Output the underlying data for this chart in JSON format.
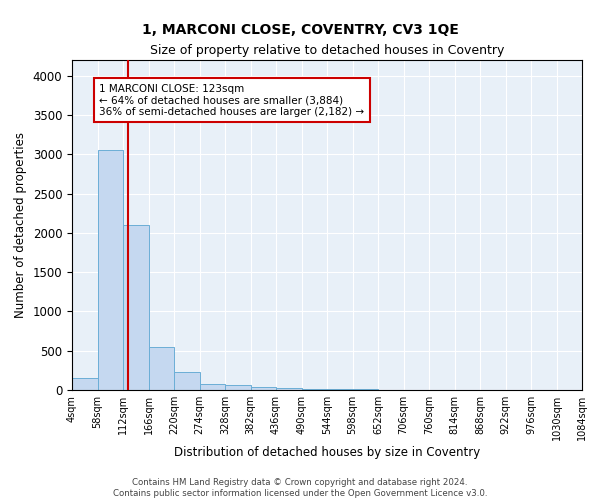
{
  "title": "1, MARCONI CLOSE, COVENTRY, CV3 1QE",
  "subtitle": "Size of property relative to detached houses in Coventry",
  "xlabel": "Distribution of detached houses by size in Coventry",
  "ylabel": "Number of detached properties",
  "bin_edges": [
    4,
    58,
    112,
    166,
    220,
    274,
    328,
    382,
    436,
    490,
    544,
    598,
    652,
    706,
    760,
    814,
    868,
    922,
    976,
    1030,
    1084
  ],
  "bar_heights": [
    150,
    3050,
    2100,
    550,
    230,
    80,
    60,
    40,
    20,
    15,
    10,
    8,
    5,
    5,
    5,
    5,
    5,
    5,
    5,
    5
  ],
  "bar_color": "#c5d8f0",
  "bar_edgecolor": "#6baed6",
  "background_color": "#e8f0f8",
  "grid_color": "#ffffff",
  "property_size": 123,
  "vline_color": "#cc0000",
  "annotation_title": "1 MARCONI CLOSE: 123sqm",
  "annotation_line1": "← 64% of detached houses are smaller (3,884)",
  "annotation_line2": "36% of semi-detached houses are larger (2,182) →",
  "annotation_box_edgecolor": "#cc0000",
  "annotation_box_facecolor": "#ffffff",
  "ylim": [
    0,
    4200
  ],
  "yticks": [
    0,
    500,
    1000,
    1500,
    2000,
    2500,
    3000,
    3500,
    4000
  ],
  "footer_line1": "Contains HM Land Registry data © Crown copyright and database right 2024.",
  "footer_line2": "Contains public sector information licensed under the Open Government Licence v3.0."
}
